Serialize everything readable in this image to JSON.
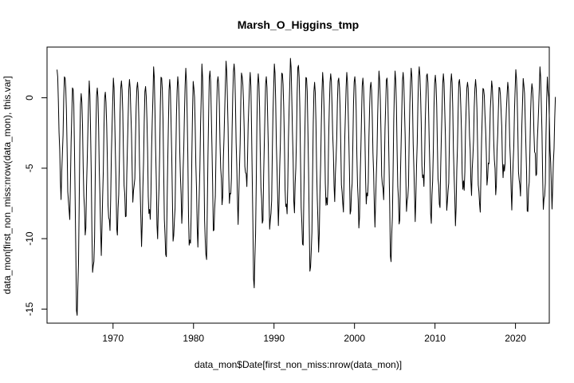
{
  "chart_data": {
    "type": "line",
    "title": "Marsh_O_Higgins_tmp",
    "xlabel": "data_mon$Date[first_non_miss:nrow(data_mon)]",
    "ylabel": "data_mon[first_non_miss:nrow(data_mon), this.var]",
    "xlim": [
      1961.8,
      2024.2
    ],
    "ylim": [
      -16.0,
      3.6
    ],
    "x_ticks": [
      1970,
      1980,
      1990,
      2000,
      2010,
      2020
    ],
    "x_tick_labels": [
      "1970",
      "1980",
      "1990",
      "2000",
      "2010",
      "2020"
    ],
    "y_ticks": [
      -15,
      -10,
      -5,
      0
    ],
    "y_tick_labels": [
      "-15",
      "-10",
      "-5",
      "0"
    ],
    "grid": false,
    "legend": "none",
    "line_color": "#000000",
    "series": [
      {
        "annual_summer_max": [
          2.0,
          1.4,
          0.6,
          0.3,
          1.2,
          0.7,
          0.4,
          1.4,
          1.2,
          1.3,
          1.1,
          0.8,
          2.2,
          1.4,
          1.3,
          1.5,
          2.1,
          0.7,
          2.4,
          1.9,
          1.5,
          2.6,
          2.4,
          1.5,
          1.8,
          1.7,
          1.5,
          2.4,
          1.7,
          2.8,
          2.3,
          1.4,
          1.1,
          1.8,
          1.7,
          1.4,
          1.8,
          1.5,
          1.4,
          1.1,
          1.9,
          1.4,
          1.9,
          1.8,
          2.1,
          2.2,
          1.7,
          1.6,
          1.7,
          1.7,
          1.3,
          1.1,
          1.3,
          0.6,
          1.2,
          0.7,
          1.1,
          2.0,
          0.9,
          1.0,
          2.2,
          0.5
        ],
        "annual_winter_min": [
          -6.4,
          -8.5,
          -15.4,
          -9.3,
          -12.7,
          -10.3,
          -9.4,
          -9.4,
          -8.3,
          -7.2,
          -9.7,
          -8.8,
          -9.4,
          -11.3,
          -10.1,
          -8.2,
          -11.0,
          -9.8,
          -11.6,
          -9.4,
          -7.1,
          -7.6,
          -8.1,
          -6.1,
          -13.2,
          -8.7,
          -9.3,
          -8.2,
          -8.4,
          -7.6,
          -10.5,
          -12.4,
          -10.2,
          -8.0,
          -6.6,
          -7.9,
          -8.1,
          -8.7,
          -7.6,
          -8.3,
          -7.1,
          -11.4,
          -8.7,
          -8.0,
          -7.9,
          -6.3,
          -8.4,
          -7.6,
          -7.8,
          -8.3,
          -6.8,
          -6.2,
          -7.9,
          -5.8,
          -6.3,
          -5.6,
          -7.1,
          -6.8,
          -7.9,
          -5.2,
          -7.9,
          -7.0
        ]
      }
    ]
  }
}
